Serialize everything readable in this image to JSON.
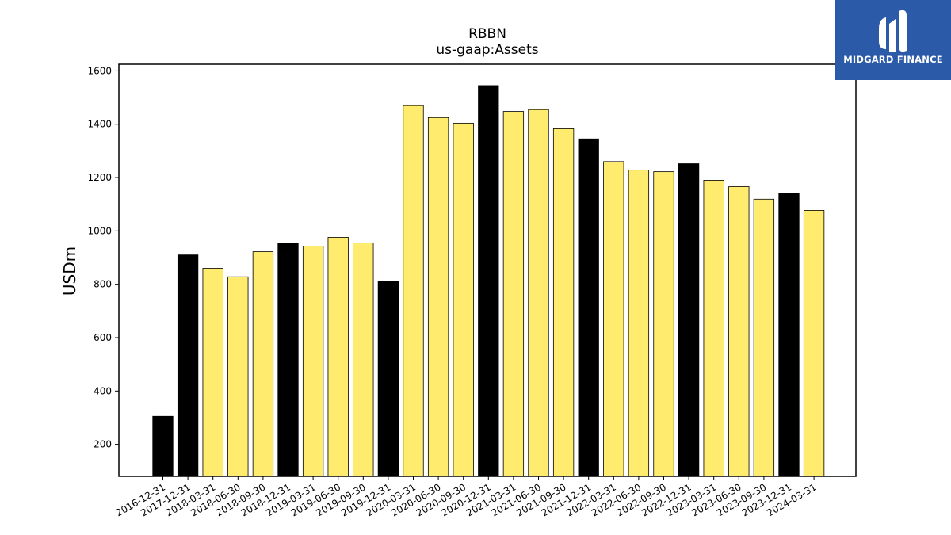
{
  "chart_data": {
    "type": "bar",
    "title": "RBBN",
    "subtitle": "us-gaap:Assets",
    "xlabel": "",
    "ylabel": "USDm",
    "ylim": [
      80,
      1625
    ],
    "yticks": [
      200,
      400,
      600,
      800,
      1000,
      1200,
      1400,
      1600
    ],
    "grid": false,
    "categories": [
      "2016-12-31",
      "2017-12-31",
      "2018-03-31",
      "2018-06-30",
      "2018-09-30",
      "2018-12-31",
      "2019-03-31",
      "2019-06-30",
      "2019-09-30",
      "2019-12-31",
      "2020-03-31",
      "2020-06-30",
      "2020-09-30",
      "2020-12-31",
      "2021-03-31",
      "2021-06-30",
      "2021-09-30",
      "2021-12-31",
      "2022-03-31",
      "2022-06-30",
      "2022-09-30",
      "2022-12-31",
      "2023-03-31",
      "2023-06-30",
      "2023-09-30",
      "2023-12-31",
      "2024-03-31"
    ],
    "values": [
      305,
      910,
      860,
      828,
      922,
      955,
      943,
      976,
      955,
      812,
      1470,
      1425,
      1404,
      1545,
      1448,
      1455,
      1383,
      1345,
      1260,
      1228,
      1222,
      1252,
      1190,
      1166,
      1119,
      1142,
      1077
    ],
    "annual_color": "#000000",
    "quarter_color": "#ffeb6e",
    "annual_flags": [
      true,
      true,
      false,
      false,
      false,
      true,
      false,
      false,
      false,
      true,
      false,
      false,
      false,
      true,
      false,
      false,
      false,
      true,
      false,
      false,
      false,
      true,
      false,
      false,
      false,
      true,
      false
    ]
  },
  "logo": {
    "text": "MIDGARD FINANCE",
    "bg_color": "#2a5aa8"
  }
}
